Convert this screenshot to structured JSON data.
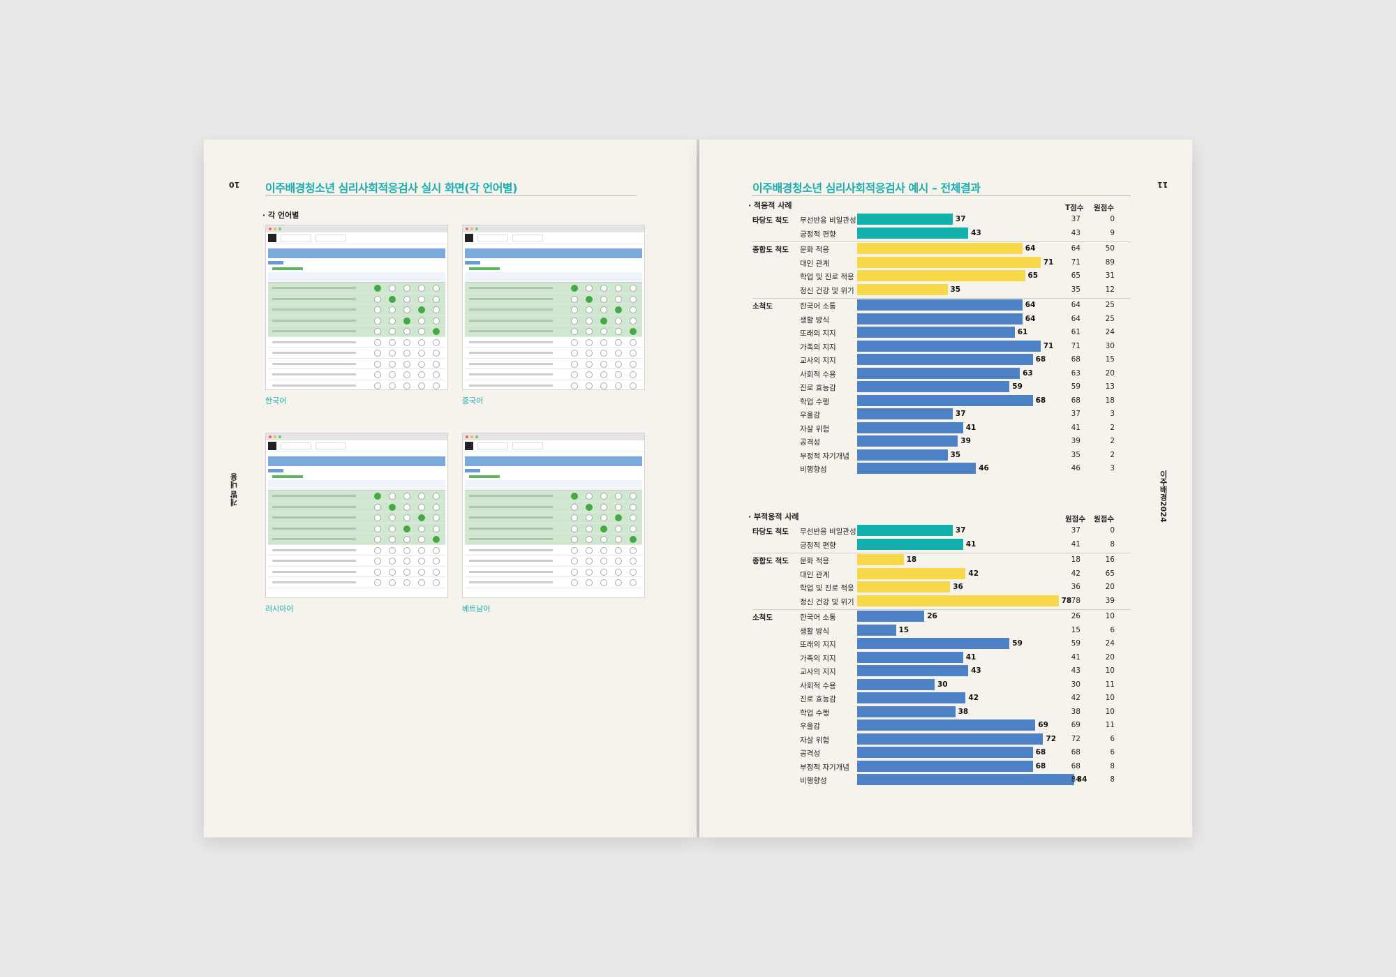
{
  "left": {
    "page_number": "10",
    "side_label": "개발 내용",
    "title": "이주배경청소년 심리사회적응검사 실시 화면(각 언어별)",
    "section_label": "· 각 언어별",
    "screens": [
      {
        "caption": "한국어"
      },
      {
        "caption": "중국어"
      },
      {
        "caption": "러시아어"
      },
      {
        "caption": "베트남어"
      }
    ]
  },
  "right": {
    "page_number": "11",
    "side_label": "이주배경2024",
    "title": "이주배경청소년 심리사회적응검사 예시 – 전체결과",
    "colors": {
      "validity": "#12b0aa",
      "composite": "#f7d84a",
      "sub": "#4e82c7"
    },
    "chart_data": [
      {
        "type": "bar",
        "title": "· 적응적 사례",
        "col_headers": [
          "T점수",
          "원점수"
        ],
        "xlim": [
          0,
          100
        ],
        "groups": [
          {
            "name": "타당도 척도",
            "rows": [
              {
                "label": "무선반응 비일관성",
                "t": 37,
                "raw": 0
              },
              {
                "label": "긍정적 편향",
                "t": 43,
                "raw": 9
              }
            ]
          },
          {
            "name": "종합도 척도",
            "rows": [
              {
                "label": "문화 적응",
                "t": 64,
                "raw": 50
              },
              {
                "label": "대인 관계",
                "t": 71,
                "raw": 89
              },
              {
                "label": "학업 및 진로 적응",
                "t": 65,
                "raw": 31
              },
              {
                "label": "정신 건강 및 위기",
                "t": 35,
                "raw": 12
              }
            ]
          },
          {
            "name": "소척도",
            "rows": [
              {
                "label": "한국어 소통",
                "t": 64,
                "raw": 25
              },
              {
                "label": "생활 방식",
                "t": 64,
                "raw": 25
              },
              {
                "label": "또래의 지지",
                "t": 61,
                "raw": 24
              },
              {
                "label": "가족의 지지",
                "t": 71,
                "raw": 30
              },
              {
                "label": "교사의 지지",
                "t": 68,
                "raw": 15
              },
              {
                "label": "사회적 수용",
                "t": 63,
                "raw": 20
              },
              {
                "label": "진로 효능감",
                "t": 59,
                "raw": 13
              },
              {
                "label": "학업 수행",
                "t": 68,
                "raw": 18
              },
              {
                "label": "우울감",
                "t": 37,
                "raw": 3
              },
              {
                "label": "자살 위험",
                "t": 41,
                "raw": 2
              },
              {
                "label": "공격성",
                "t": 39,
                "raw": 2
              },
              {
                "label": "부정적 자기개념",
                "t": 35,
                "raw": 2
              },
              {
                "label": "비행향성",
                "t": 46,
                "raw": 3
              }
            ]
          }
        ]
      },
      {
        "type": "bar",
        "title": "· 부적응적 사례",
        "col_headers": [
          "원점수",
          "원점수"
        ],
        "xlim": [
          0,
          100
        ],
        "groups": [
          {
            "name": "타당도 척도",
            "rows": [
              {
                "label": "무선반응 비일관성",
                "t": 37,
                "raw": 0
              },
              {
                "label": "긍정적 편향",
                "t": 41,
                "raw": 8
              }
            ]
          },
          {
            "name": "종합도 척도",
            "rows": [
              {
                "label": "문화 적응",
                "t": 18,
                "raw": 16
              },
              {
                "label": "대인 관계",
                "t": 42,
                "raw": 65
              },
              {
                "label": "학업 및 진로 적응",
                "t": 36,
                "raw": 20
              },
              {
                "label": "정신 건강 및 위기",
                "t": 78,
                "raw": 39
              }
            ]
          },
          {
            "name": "소척도",
            "rows": [
              {
                "label": "한국어 소통",
                "t": 26,
                "raw": 10
              },
              {
                "label": "생활 방식",
                "t": 15,
                "raw": 6
              },
              {
                "label": "또래의 지지",
                "t": 59,
                "raw": 24
              },
              {
                "label": "가족의 지지",
                "t": 41,
                "raw": 20
              },
              {
                "label": "교사의 지지",
                "t": 43,
                "raw": 10
              },
              {
                "label": "사회적 수용",
                "t": 30,
                "raw": 11
              },
              {
                "label": "진로 효능감",
                "t": 42,
                "raw": 10
              },
              {
                "label": "학업 수행",
                "t": 38,
                "raw": 10
              },
              {
                "label": "우울감",
                "t": 69,
                "raw": 11
              },
              {
                "label": "자살 위험",
                "t": 72,
                "raw": 6
              },
              {
                "label": "공격성",
                "t": 68,
                "raw": 6
              },
              {
                "label": "부정적 자기개념",
                "t": 68,
                "raw": 8
              },
              {
                "label": "비행향성",
                "t": 84,
                "raw": 8
              }
            ]
          }
        ]
      }
    ]
  }
}
